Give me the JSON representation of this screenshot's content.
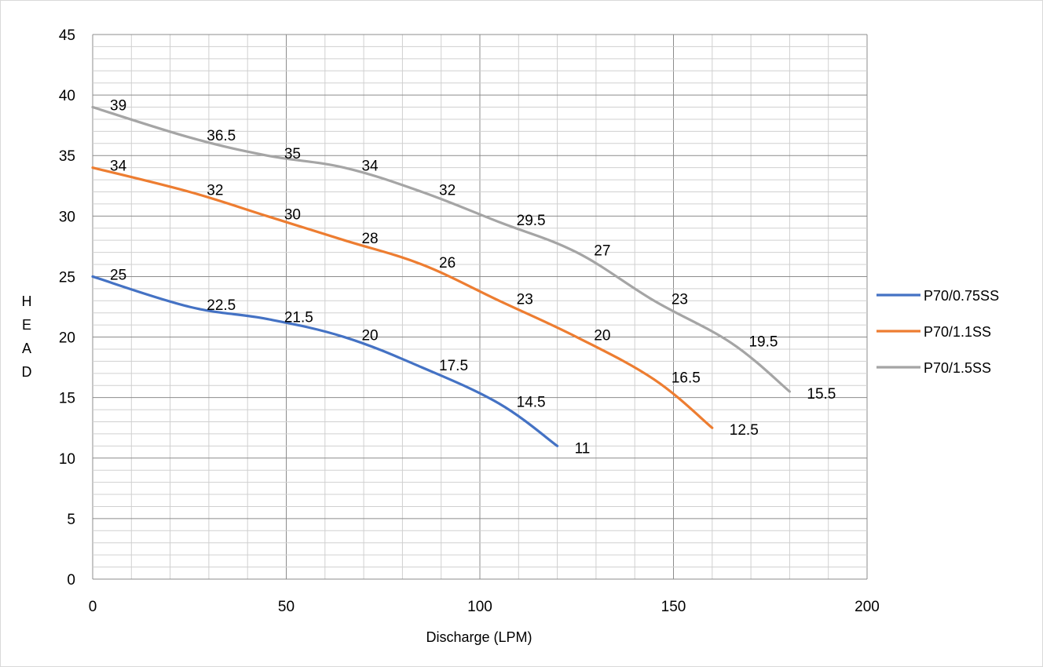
{
  "chart_data": {
    "type": "line",
    "title": "",
    "xlabel": "Discharge (LPM)",
    "ylabel": "H E A D",
    "ylabel_letters": [
      "H",
      "E",
      "A",
      "D"
    ],
    "xlim": [
      0,
      200
    ],
    "ylim": [
      0,
      45
    ],
    "x_major_step": 50,
    "x_minor_step": 10,
    "y_major_step": 5,
    "y_minor_step": 1,
    "x_ticks": [
      "0",
      "50",
      "100",
      "150",
      "200"
    ],
    "y_ticks": [
      "0",
      "5",
      "10",
      "15",
      "20",
      "25",
      "30",
      "35",
      "40",
      "45"
    ],
    "grid": true,
    "legend_position": "right",
    "series": [
      {
        "name": "P70/0.75SS",
        "color": "#4472C4",
        "x": [
          0,
          25,
          45,
          65,
          85,
          105,
          120
        ],
        "y": [
          25,
          22.5,
          21.5,
          20,
          17.5,
          14.5,
          11
        ],
        "labels": [
          "25",
          "22.5",
          "21.5",
          "20",
          "17.5",
          "14.5",
          "11"
        ]
      },
      {
        "name": "P70/1.1SS",
        "color": "#ED7D31",
        "x": [
          0,
          25,
          45,
          65,
          85,
          105,
          125,
          145,
          160
        ],
        "y": [
          34,
          32,
          30,
          28,
          26,
          23,
          20,
          16.5,
          12.5
        ],
        "labels": [
          "34",
          "32",
          "30",
          "28",
          "26",
          "23",
          "20",
          "16.5",
          "12.5"
        ]
      },
      {
        "name": "P70/1.5SS",
        "color": "#A5A5A5",
        "x": [
          0,
          25,
          45,
          65,
          85,
          105,
          125,
          145,
          165,
          180
        ],
        "y": [
          39,
          36.5,
          35,
          34,
          32,
          29.5,
          27,
          23,
          19.5,
          15.5
        ],
        "labels": [
          "39",
          "36.5",
          "35",
          "34",
          "32",
          "29.5",
          "27",
          "23",
          "19.5",
          "15.5"
        ]
      }
    ]
  }
}
